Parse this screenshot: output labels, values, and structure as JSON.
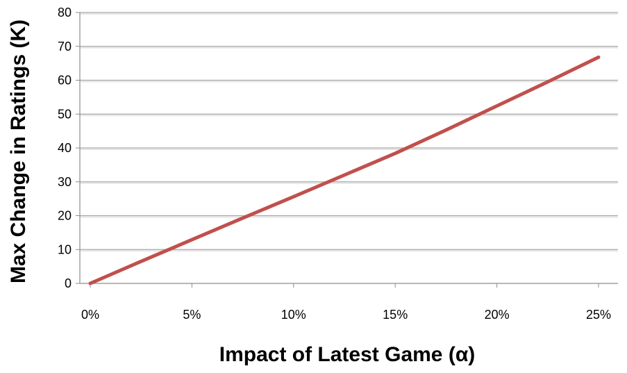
{
  "chart_data": {
    "type": "line",
    "title": "",
    "xlabel": "Impact of Latest Game (α)",
    "ylabel": "Max Change in Ratings (K)",
    "x": [
      0,
      0.025,
      0.05,
      0.075,
      0.1,
      0.125,
      0.15,
      0.175,
      0.2,
      0.225,
      0.25
    ],
    "x_tick_labels": [
      "0%",
      "5%",
      "10%",
      "15%",
      "20%",
      "25%"
    ],
    "x_ticks": [
      0,
      0.05,
      0.1,
      0.15,
      0.2,
      0.25
    ],
    "y_ticks": [
      0,
      10,
      20,
      30,
      40,
      50,
      60,
      70,
      80
    ],
    "xlim": [
      0,
      0.25
    ],
    "ylim": [
      0,
      80
    ],
    "grid": "horizontal",
    "legend": "none",
    "series": [
      {
        "values": [
          0,
          6.5,
          12.9,
          19.3,
          25.6,
          32.0,
          38.4,
          45.3,
          52.4,
          59.5,
          66.8
        ],
        "color": "#c0504d"
      }
    ]
  }
}
